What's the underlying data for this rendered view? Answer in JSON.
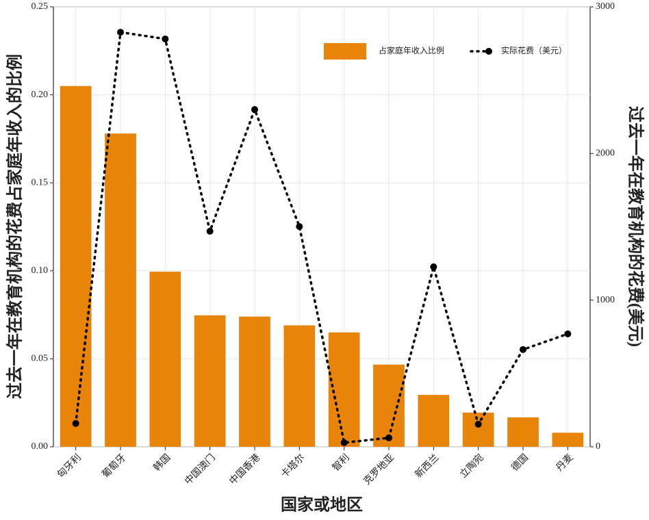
{
  "chart_data": {
    "type": "bar-line",
    "x_label": "国家或地区",
    "y_label": "过去一年在教育机构的花费占家庭年收入的比例",
    "y2_label": "过去一年在教育机构的花费(美元)",
    "categories": [
      "匈牙利",
      "葡萄牙",
      "韩国",
      "中国澳门",
      "中国香港",
      "卡塔尔",
      "智利",
      "克罗地亚",
      "新西兰",
      "立陶宛",
      "德国",
      "丹麦"
    ],
    "series": [
      {
        "name": "占家庭年收入比例",
        "type": "bar",
        "axis": "y",
        "color": "#e8840a",
        "values": [
          0.205,
          0.178,
          0.0995,
          0.0747,
          0.074,
          0.069,
          0.065,
          0.0467,
          0.0295,
          0.0194,
          0.0167,
          0.008
        ]
      },
      {
        "name": "实际花费（美元）",
        "type": "line",
        "axis": "y2",
        "color": "#000000",
        "values": [
          159,
          2827,
          2781,
          1470,
          2300,
          1502,
          28,
          61,
          1227,
          154,
          663,
          770
        ]
      }
    ],
    "ylim": [
      0,
      0.25
    ],
    "yticks": [
      {
        "value": 0,
        "label": "0.00"
      },
      0.05,
      {
        "value": 0.1,
        "label": "0.10"
      },
      0.15,
      {
        "value": 0.2,
        "label": "0.20"
      },
      0.25
    ],
    "y2lim": [
      0,
      3000
    ],
    "y2ticks": [
      0,
      1000,
      2000,
      3000
    ],
    "grid": true,
    "legend": "upper right"
  }
}
